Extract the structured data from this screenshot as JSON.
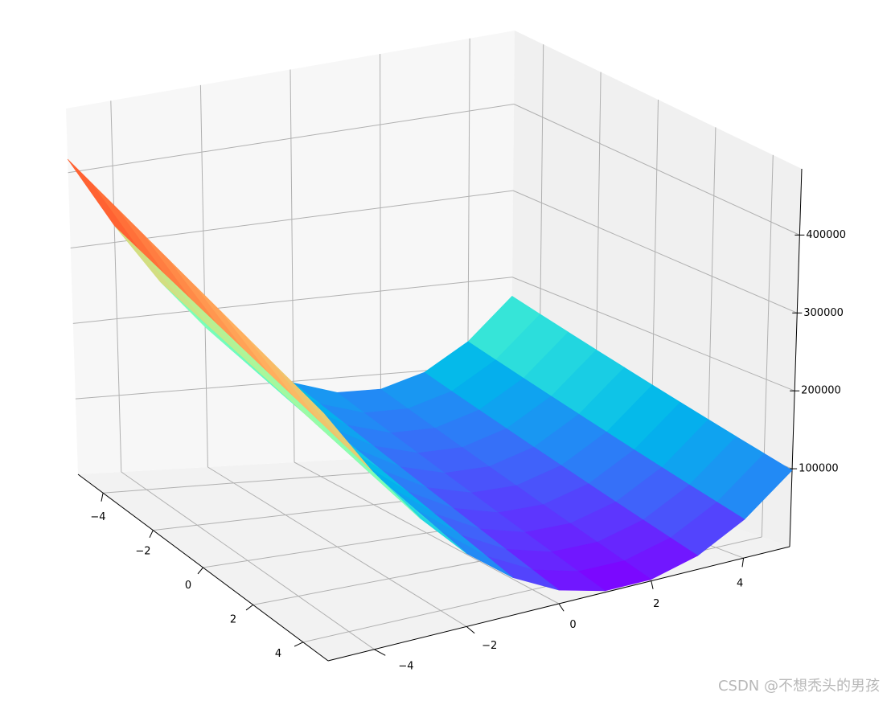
{
  "chart_data": {
    "type": "surface",
    "x": [
      -5,
      -4,
      -3,
      -2,
      -1,
      0,
      1,
      2,
      3,
      4,
      5
    ],
    "y": [
      -5,
      -4,
      -3,
      -2,
      -1,
      0,
      1,
      2,
      3,
      4,
      5
    ],
    "z": [
      [
        418000,
        322000,
        242000,
        178000,
        130000,
        98000,
        82000,
        82000,
        98000,
        130000,
        178000
      ],
      [
        410000,
        314000,
        234000,
        170000,
        122000,
        90000,
        74000,
        74000,
        90000,
        122000,
        170000
      ],
      [
        402000,
        306000,
        226000,
        162000,
        114000,
        82000,
        66000,
        66000,
        82000,
        114000,
        162000
      ],
      [
        394000,
        298000,
        218000,
        154000,
        106000,
        74000,
        58000,
        58000,
        74000,
        106000,
        154000
      ],
      [
        386000,
        290000,
        210000,
        146000,
        98000,
        66000,
        50000,
        50000,
        66000,
        98000,
        146000
      ],
      [
        378000,
        282000,
        202000,
        138000,
        90000,
        58000,
        42000,
        42000,
        58000,
        90000,
        138000
      ],
      [
        370000,
        274000,
        194000,
        130000,
        82000,
        50000,
        34000,
        34000,
        50000,
        82000,
        130000
      ],
      [
        362000,
        266000,
        186000,
        122000,
        74000,
        42000,
        26000,
        26000,
        42000,
        74000,
        122000
      ],
      [
        354000,
        258000,
        178000,
        114000,
        66000,
        34000,
        18000,
        18000,
        34000,
        66000,
        114000
      ],
      [
        346000,
        250000,
        170000,
        106000,
        58000,
        26000,
        10000,
        10000,
        26000,
        58000,
        106000
      ],
      [
        338000,
        242000,
        162000,
        98000,
        50000,
        18000,
        2000,
        2000,
        18000,
        50000,
        98000
      ]
    ],
    "xlim": [
      -5,
      5
    ],
    "ylim": [
      -5,
      5
    ],
    "zlim": [
      0,
      485000
    ],
    "xticks": [
      {
        "value": -4,
        "label": "−4"
      },
      {
        "value": -2,
        "label": "−2"
      },
      0,
      2,
      4
    ],
    "yticks": [
      {
        "value": -4,
        "label": "−4"
      },
      {
        "value": -2,
        "label": "−2"
      },
      0,
      2,
      4
    ],
    "zticks": [
      100000,
      200000,
      300000,
      400000
    ],
    "colormap": "rainbow",
    "grid": true
  },
  "watermark": "CSDN @不想秃头的男孩"
}
